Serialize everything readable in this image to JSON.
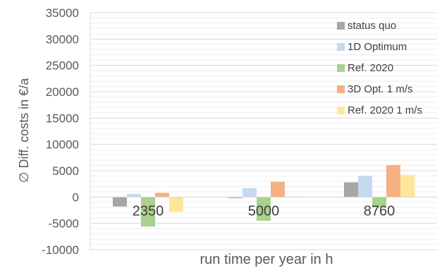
{
  "chart_data": {
    "type": "bar",
    "ylabel": "∅ Diff. costs in €/a",
    "xlabel": "run time per year in h",
    "ylim": [
      -10000,
      35000
    ],
    "y_ticks": [
      -10000,
      -5000,
      0,
      5000,
      10000,
      15000,
      20000,
      25000,
      30000,
      35000
    ],
    "y_tick_labels": [
      "-10000",
      "-5000",
      "0",
      "5000",
      "10000",
      "15000",
      "20000",
      "25000",
      "30000",
      "35000"
    ],
    "grid": true,
    "legend_position": "top-right",
    "categories": [
      "2350",
      "5000",
      "8760"
    ],
    "series": [
      {
        "name": "status quo",
        "color": "#a6a6a6",
        "values": [
          -1800,
          -200,
          2800
        ]
      },
      {
        "name": "1D Optimum",
        "color": "#c5d9f1",
        "values": [
          600,
          1700,
          4000
        ]
      },
      {
        "name": "Ref. 2020",
        "color": "#a9d18e",
        "values": [
          -5600,
          -4500,
          -2000
        ]
      },
      {
        "name": "3D Opt. 1 m/s",
        "color": "#f4b183",
        "values": [
          800,
          2900,
          6100
        ]
      },
      {
        "name": "Ref. 2020 1 m/s",
        "color": "#ffe699",
        "values": [
          -2800,
          100,
          4200
        ]
      }
    ]
  }
}
